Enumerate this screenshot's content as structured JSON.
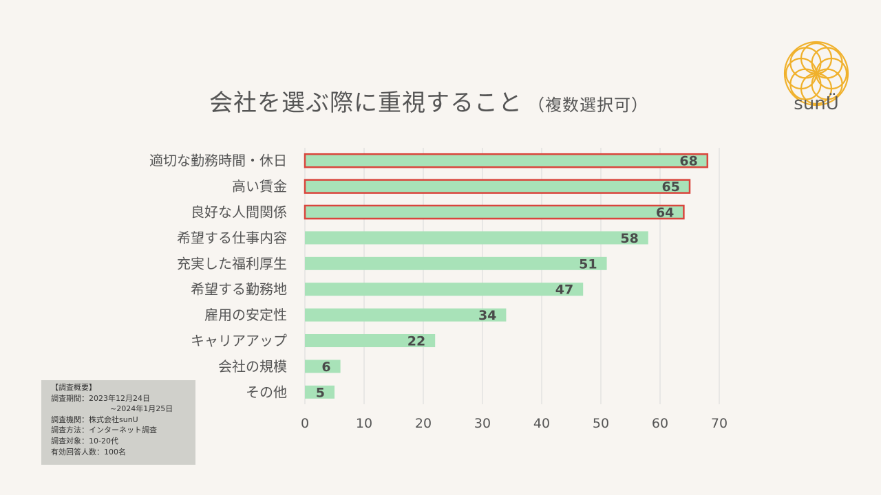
{
  "title": "会社を選ぶ際に重視すること",
  "subtitle": "（複数選択可）",
  "logo": {
    "text": "sunÜ",
    "color": "#f0b12c"
  },
  "survey_note": {
    "heading": "【調査概要】",
    "period_label": "調査期間：2023年12月24日",
    "period_end": "~2024年1月25日",
    "org": "調査機関：株式会社sunU",
    "method": "調査方法：インターネット調査",
    "target": "調査対象：10-20代",
    "respondents": "有効回答人数：100名"
  },
  "chart_data": {
    "type": "bar",
    "orientation": "horizontal",
    "categories": [
      "適切な勤務時間・休日",
      "高い賃金",
      "良好な人間関係",
      "希望する仕事内容",
      "充実した福利厚生",
      "希望する勤務地",
      "雇用の安定性",
      "キャリアアップ",
      "会社の規模",
      "その他"
    ],
    "values": [
      68,
      65,
      64,
      58,
      51,
      47,
      34,
      22,
      6,
      5
    ],
    "highlighted": [
      true,
      true,
      true,
      false,
      false,
      false,
      false,
      false,
      false,
      false
    ],
    "xlim": [
      0,
      70
    ],
    "xticks": [
      0,
      10,
      20,
      30,
      40,
      50,
      60,
      70
    ],
    "grid": true,
    "bar_color": "#a8e2b8",
    "highlight_color": "#d9453c"
  }
}
